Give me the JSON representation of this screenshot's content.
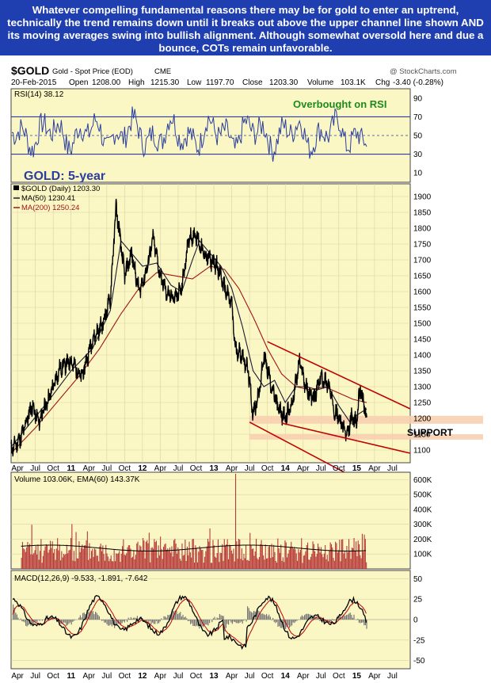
{
  "caption": "Whatever compelling fundamental reasons there may be for gold to enter an uptrend, technically the trend remains down until it breaks out above the upper channel line shown AND its moving averages swing into bullish alignment. Although somewhat oversold here and due a bounce, COTs remain unfavorable.",
  "header": {
    "symbol": "$GOLD",
    "name": "Gold - Spot Price (EOD)",
    "exchange": "CME",
    "credit": "@ StockCharts.com",
    "date": "20-Feb-2015",
    "open_label": "Open",
    "open": "1208.00",
    "high_label": "High",
    "high": "1215.30",
    "low_label": "Low",
    "low": "1197.70",
    "close_label": "Close",
    "close": "1203.30",
    "volume_label": "Volume",
    "volume": "103.1K",
    "chg_label": "Chg",
    "chg": "-3.40 (-0.28%)"
  },
  "colors": {
    "panel_bg": "#fbf7c4",
    "caption_bg": "#1f3fb0",
    "price": "#000000",
    "ma50": "#1a1a3a",
    "ma200": "#a01515",
    "channel": "#c00000",
    "support_band": "#f7cfb0",
    "volume": "#b73a3a",
    "annot_green": "#1d8a1d",
    "annot_blue": "#2a3ea0"
  },
  "chart_data": [
    {
      "type": "line",
      "panel": "rsi",
      "legend": "RSI(14) 38.12",
      "yticks": [
        90,
        70,
        50,
        30,
        10
      ],
      "ylim": [
        0,
        100
      ],
      "reference_lines": [
        70,
        50,
        30
      ],
      "annotation": "Overbought on RSI",
      "last_value": 38.12
    },
    {
      "type": "line",
      "panel": "price",
      "title": "GOLD: 5-year",
      "legend": [
        {
          "name": "$GOLD (Daily) 1203.30",
          "color": "#000000"
        },
        {
          "name": "MA(50) 1230.41",
          "color": "#1a1a3a"
        },
        {
          "name": "MA(200) 1250.24",
          "color": "#a01515"
        }
      ],
      "yticks": [
        1900,
        1850,
        1800,
        1750,
        1700,
        1650,
        1600,
        1550,
        1500,
        1450,
        1400,
        1350,
        1300,
        1250,
        1200,
        1150,
        1100
      ],
      "ylim": [
        1060,
        1940
      ],
      "x_start": 2010.16,
      "x_end": 2015.75,
      "series": [
        {
          "name": "$GOLD",
          "x": [
            2010.16,
            2010.3,
            2010.45,
            2010.55,
            2010.7,
            2010.85,
            2011.0,
            2011.15,
            2011.3,
            2011.45,
            2011.55,
            2011.63,
            2011.67,
            2011.75,
            2011.85,
            2011.95,
            2012.05,
            2012.15,
            2012.25,
            2012.35,
            2012.45,
            2012.55,
            2012.65,
            2012.75,
            2012.85,
            2012.95,
            2013.05,
            2013.15,
            2013.25,
            2013.3,
            2013.4,
            2013.48,
            2013.55,
            2013.65,
            2013.7,
            2013.8,
            2013.9,
            2014.0,
            2014.1,
            2014.2,
            2014.3,
            2014.4,
            2014.5,
            2014.6,
            2014.7,
            2014.8,
            2014.87,
            2014.92,
            2015.0,
            2015.05,
            2015.1,
            2015.14
          ],
          "y": [
            1100,
            1140,
            1240,
            1190,
            1270,
            1360,
            1380,
            1330,
            1450,
            1500,
            1580,
            1870,
            1800,
            1650,
            1720,
            1600,
            1660,
            1770,
            1650,
            1590,
            1580,
            1610,
            1770,
            1780,
            1720,
            1700,
            1680,
            1610,
            1560,
            1420,
            1400,
            1350,
            1210,
            1300,
            1400,
            1310,
            1230,
            1200,
            1250,
            1380,
            1290,
            1260,
            1330,
            1310,
            1220,
            1180,
            1140,
            1200,
            1190,
            1300,
            1240,
            1203
          ]
        },
        {
          "name": "MA(50)",
          "x": [
            2010.16,
            2010.45,
            2010.7,
            2011.0,
            2011.3,
            2011.55,
            2011.7,
            2011.85,
            2012.0,
            2012.2,
            2012.4,
            2012.55,
            2012.7,
            2012.8,
            2012.95,
            2013.1,
            2013.25,
            2013.4,
            2013.55,
            2013.7,
            2013.85,
            2014.0,
            2014.15,
            2014.3,
            2014.45,
            2014.6,
            2014.75,
            2014.9,
            2015.0,
            2015.14
          ],
          "y": [
            1110,
            1190,
            1260,
            1350,
            1420,
            1540,
            1760,
            1720,
            1680,
            1690,
            1620,
            1600,
            1700,
            1760,
            1720,
            1680,
            1610,
            1490,
            1350,
            1300,
            1320,
            1250,
            1300,
            1300,
            1290,
            1300,
            1240,
            1190,
            1210,
            1230
          ]
        },
        {
          "name": "MA(200)",
          "x": [
            2010.16,
            2010.5,
            2010.8,
            2011.1,
            2011.4,
            2011.7,
            2011.95,
            2012.2,
            2012.45,
            2012.7,
            2012.95,
            2013.15,
            2013.35,
            2013.55,
            2013.75,
            2013.95,
            2014.15,
            2014.35,
            2014.55,
            2014.75,
            2014.95,
            2015.14
          ],
          "y": [
            1090,
            1170,
            1250,
            1330,
            1420,
            1530,
            1610,
            1660,
            1650,
            1640,
            1680,
            1670,
            1610,
            1520,
            1420,
            1340,
            1300,
            1290,
            1300,
            1280,
            1260,
            1250
          ]
        }
      ],
      "channel_lines": [
        {
          "x": [
            2013.75,
            2015.75
          ],
          "y": [
            1442,
            1230
          ]
        },
        {
          "x": [
            2013.5,
            2015.75
          ],
          "y": [
            1188,
            920
          ]
        },
        {
          "x": [
            2013.95,
            2015.75
          ],
          "y": [
            1185,
            1090
          ]
        }
      ],
      "support_zones": [
        {
          "y": [
            1183,
            1208
          ]
        },
        {
          "y": [
            1133,
            1150
          ]
        }
      ],
      "annotation": "SUPPORT",
      "last_value": 1203.3
    },
    {
      "type": "bar",
      "panel": "volume",
      "legend": "Volume 103.06K, EMA(60) 143.37K",
      "yticks": [
        "600K",
        "500K",
        "400K",
        "300K",
        "200K",
        "100K"
      ],
      "ylim": [
        0,
        650
      ],
      "unit": "K",
      "spike": {
        "x": 2013.3,
        "value": 640
      },
      "typical_range": [
        40,
        250
      ]
    },
    {
      "type": "line",
      "panel": "macd",
      "legend": "MACD(12,26,9) -9.533, -1.891, -7.642",
      "yticks": [
        50,
        25,
        0,
        -25,
        -50
      ],
      "ylim": [
        -60,
        60
      ],
      "values": {
        "macd": -9.533,
        "signal": -1.891,
        "histogram": -7.642
      }
    }
  ],
  "x_axis": {
    "labels": [
      "Apr",
      "Jul",
      "Oct",
      "11",
      "Apr",
      "Jul",
      "Oct",
      "12",
      "Apr",
      "Jul",
      "Oct",
      "13",
      "Apr",
      "Jul",
      "Oct",
      "14",
      "Apr",
      "Jul",
      "Oct",
      "15",
      "Apr",
      "Jul"
    ],
    "positions": [
      2010.25,
      2010.5,
      2010.75,
      2011.0,
      2011.25,
      2011.5,
      2011.75,
      2012.0,
      2012.25,
      2012.5,
      2012.75,
      2013.0,
      2013.25,
      2013.5,
      2013.75,
      2014.0,
      2014.25,
      2014.5,
      2014.75,
      2015.0,
      2015.25,
      2015.5
    ]
  }
}
